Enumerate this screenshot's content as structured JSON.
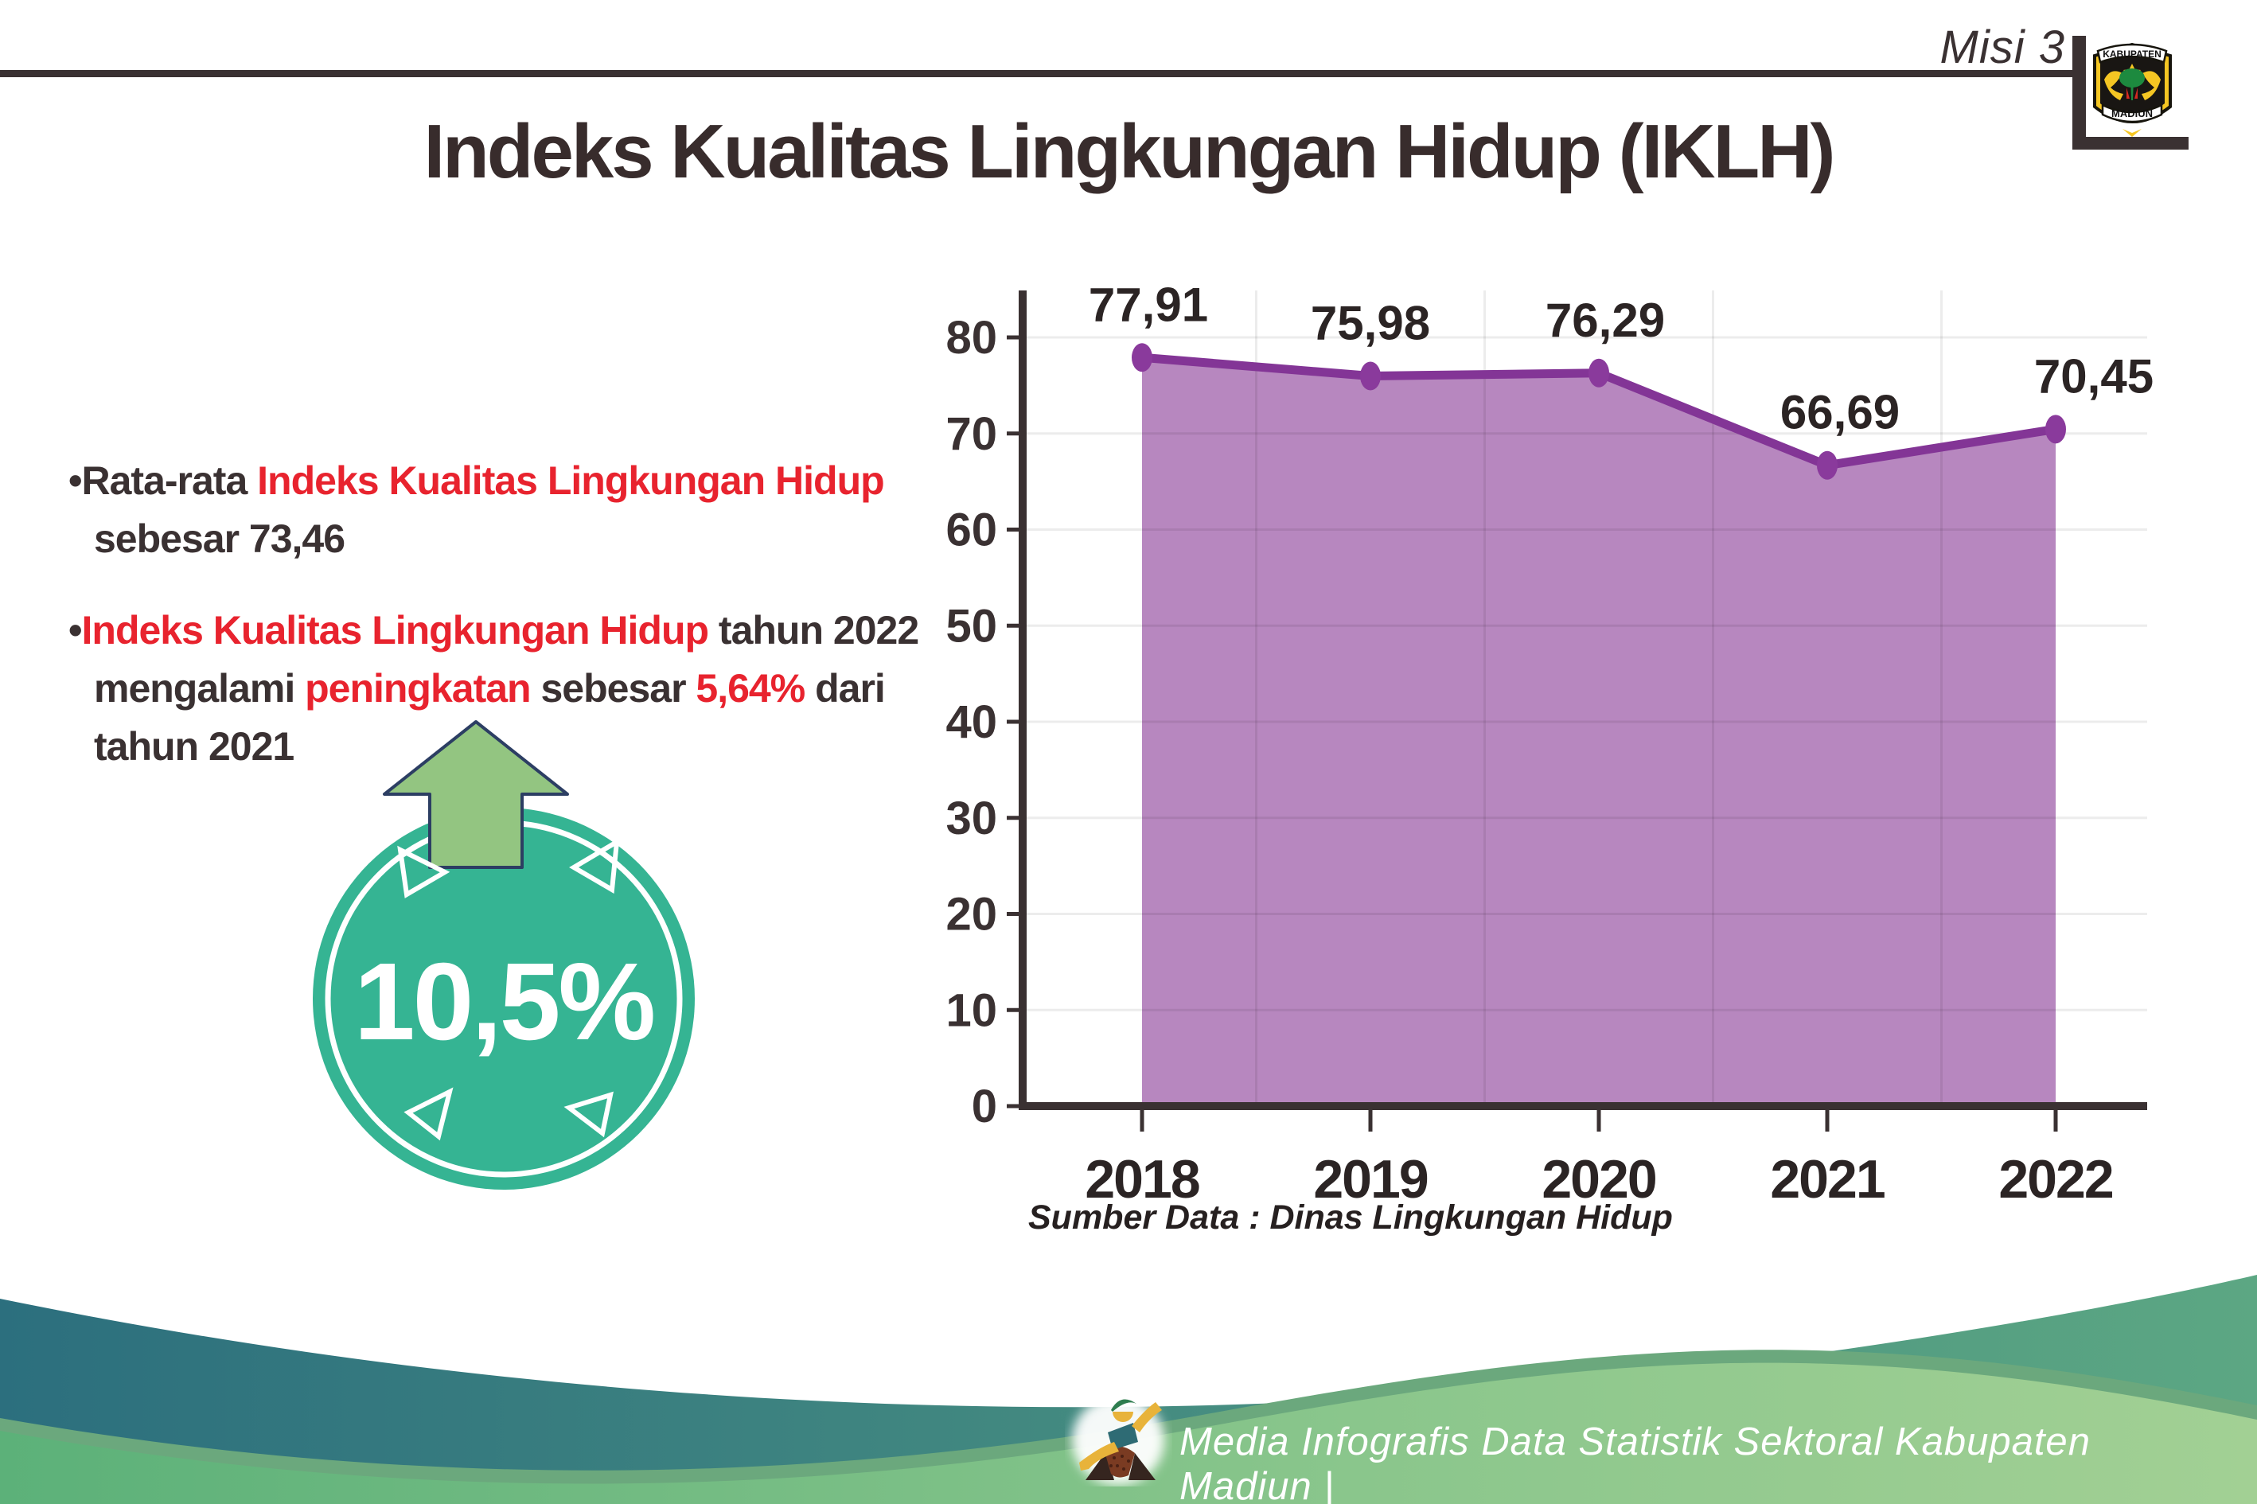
{
  "header": {
    "misi_label": "Misi 3",
    "logo_top": "KABUPATEN",
    "logo_bottom": "MADIUN"
  },
  "title": "Indeks Kualitas Lingkungan Hidup (IKLH)",
  "bullets": [
    {
      "lines": [
        [
          {
            "t": "Rata-rata ",
            "c": "dark"
          },
          {
            "t": "Indeks Kualitas Lingkungan Hidup",
            "c": "red"
          }
        ],
        [
          {
            "t": "sebesar 73,46",
            "c": "dark"
          }
        ]
      ]
    },
    {
      "lines": [
        [
          {
            "t": "Indeks Kualitas Lingkungan Hidup",
            "c": "red"
          },
          {
            "t": " tahun 2022",
            "c": "dark"
          }
        ],
        [
          {
            "t": "mengalami ",
            "c": "dark"
          },
          {
            "t": "peningkatan",
            "c": "red"
          },
          {
            "t": " sebesar ",
            "c": "dark"
          },
          {
            "t": "5,64%",
            "c": "red"
          },
          {
            "t": " dari",
            "c": "dark"
          }
        ],
        [
          {
            "t": "tahun 2021",
            "c": "dark"
          }
        ]
      ]
    }
  ],
  "badge": {
    "value": "10,5%",
    "direction": "up"
  },
  "chart_data": {
    "type": "area",
    "categories": [
      "2018",
      "2019",
      "2020",
      "2021",
      "2022"
    ],
    "values": [
      77.91,
      75.98,
      76.29,
      66.69,
      70.45
    ],
    "value_labels": [
      "77,91",
      "75,98",
      "76,29",
      "66,69",
      "70,45"
    ],
    "ylim": [
      0,
      80
    ],
    "ytick_step": 10,
    "ytick_labels": [
      "0",
      "10",
      "20",
      "30",
      "40",
      "50",
      "60",
      "70",
      "80"
    ],
    "grid": true,
    "legend_position": "none",
    "title": "",
    "xlabel": "",
    "ylabel": "",
    "line_color": "#833596",
    "marker_color": "#8a3a9c",
    "fill_color": "#b787bf",
    "source_note": "Sumber Data : Dinas Lingkungan Hidup"
  },
  "footer": {
    "caption": "Media Infografis Data Statistik Sektoral Kabupaten Madiun |"
  },
  "colors": {
    "dark_text": "#3a3132",
    "red_text": "#e8232e",
    "badge_teal": "#35b493",
    "arrow_green": "#93c581",
    "arrow_outline": "#2c3e63",
    "footer_teal_left": "#2c6f7e",
    "footer_teal_right": "#5ca783",
    "footer_green_left": "#5cb179",
    "footer_green_right": "#a2d094"
  }
}
